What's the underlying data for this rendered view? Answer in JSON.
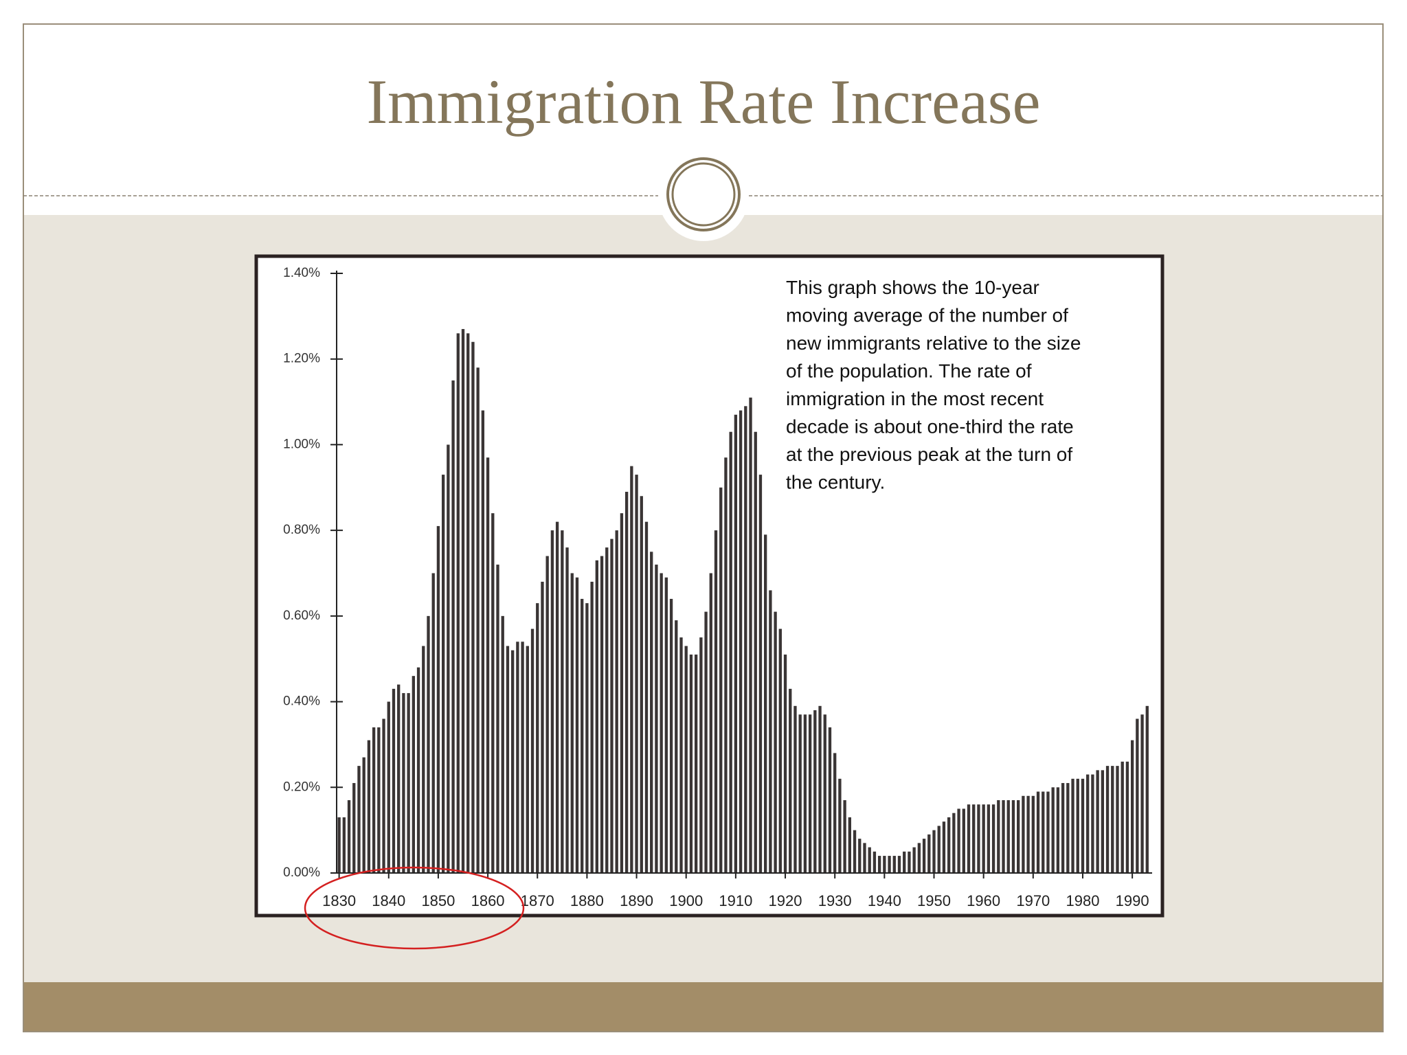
{
  "chart_data": {
    "type": "bar",
    "title": "Immigration Rate Increase",
    "annotation": [
      "This graph shows the 10-year",
      "moving average of the number of",
      "new immigrants relative to the size",
      "of the population. The rate of",
      "immigration in the most recent",
      "decade is about one-third the rate",
      "at the previous peak at the turn of",
      "the century."
    ],
    "x": [
      1830,
      1831,
      1832,
      1833,
      1834,
      1835,
      1836,
      1837,
      1838,
      1839,
      1840,
      1841,
      1842,
      1843,
      1844,
      1845,
      1846,
      1847,
      1848,
      1849,
      1850,
      1851,
      1852,
      1853,
      1854,
      1855,
      1856,
      1857,
      1858,
      1859,
      1860,
      1861,
      1862,
      1863,
      1864,
      1865,
      1866,
      1867,
      1868,
      1869,
      1870,
      1871,
      1872,
      1873,
      1874,
      1875,
      1876,
      1877,
      1878,
      1879,
      1880,
      1881,
      1882,
      1883,
      1884,
      1885,
      1886,
      1887,
      1888,
      1889,
      1890,
      1891,
      1892,
      1893,
      1894,
      1895,
      1896,
      1897,
      1898,
      1899,
      1900,
      1901,
      1902,
      1903,
      1904,
      1905,
      1906,
      1907,
      1908,
      1909,
      1910,
      1911,
      1912,
      1913,
      1914,
      1915,
      1916,
      1917,
      1918,
      1919,
      1920,
      1921,
      1922,
      1923,
      1924,
      1925,
      1926,
      1927,
      1928,
      1929,
      1930,
      1931,
      1932,
      1933,
      1934,
      1935,
      1936,
      1937,
      1938,
      1939,
      1940,
      1941,
      1942,
      1943,
      1944,
      1945,
      1946,
      1947,
      1948,
      1949,
      1950,
      1951,
      1952,
      1953,
      1954,
      1955,
      1956,
      1957,
      1958,
      1959,
      1960,
      1961,
      1962,
      1963,
      1964,
      1965,
      1966,
      1967,
      1968,
      1969,
      1970,
      1971,
      1972,
      1973,
      1974,
      1975,
      1976,
      1977,
      1978,
      1979,
      1980,
      1981,
      1982,
      1983,
      1984,
      1985,
      1986,
      1987,
      1988,
      1989,
      1990,
      1991,
      1992,
      1993
    ],
    "values": [
      0.13,
      0.13,
      0.17,
      0.21,
      0.25,
      0.27,
      0.31,
      0.34,
      0.34,
      0.36,
      0.4,
      0.43,
      0.44,
      0.42,
      0.42,
      0.46,
      0.48,
      0.53,
      0.6,
      0.7,
      0.81,
      0.93,
      1.0,
      1.15,
      1.26,
      1.27,
      1.26,
      1.24,
      1.18,
      1.08,
      0.97,
      0.84,
      0.72,
      0.6,
      0.53,
      0.52,
      0.54,
      0.54,
      0.53,
      0.57,
      0.63,
      0.68,
      0.74,
      0.8,
      0.82,
      0.8,
      0.76,
      0.7,
      0.69,
      0.64,
      0.63,
      0.68,
      0.73,
      0.74,
      0.76,
      0.78,
      0.8,
      0.84,
      0.89,
      0.95,
      0.93,
      0.88,
      0.82,
      0.75,
      0.72,
      0.7,
      0.69,
      0.64,
      0.59,
      0.55,
      0.53,
      0.51,
      0.51,
      0.55,
      0.61,
      0.7,
      0.8,
      0.9,
      0.97,
      1.03,
      1.07,
      1.08,
      1.09,
      1.11,
      1.03,
      0.93,
      0.79,
      0.66,
      0.61,
      0.57,
      0.51,
      0.43,
      0.39,
      0.37,
      0.37,
      0.37,
      0.38,
      0.39,
      0.37,
      0.34,
      0.28,
      0.22,
      0.17,
      0.13,
      0.1,
      0.08,
      0.07,
      0.06,
      0.05,
      0.04,
      0.04,
      0.04,
      0.04,
      0.04,
      0.05,
      0.05,
      0.06,
      0.07,
      0.08,
      0.09,
      0.1,
      0.11,
      0.12,
      0.13,
      0.14,
      0.15,
      0.15,
      0.16,
      0.16,
      0.16,
      0.16,
      0.16,
      0.16,
      0.17,
      0.17,
      0.17,
      0.17,
      0.17,
      0.18,
      0.18,
      0.18,
      0.19,
      0.19,
      0.19,
      0.2,
      0.2,
      0.21,
      0.21,
      0.22,
      0.22,
      0.22,
      0.23,
      0.23,
      0.24,
      0.24,
      0.25,
      0.25,
      0.25,
      0.26,
      0.26,
      0.31,
      0.36,
      0.37,
      0.39
    ],
    "color": "#3a3535",
    "xlim": [
      1829.5,
      1994
    ],
    "xticks": [
      1830,
      1840,
      1850,
      1860,
      1870,
      1880,
      1890,
      1900,
      1910,
      1920,
      1930,
      1940,
      1950,
      1960,
      1970,
      1980,
      1990
    ],
    "ylim": [
      0,
      1.4
    ],
    "yticks": [
      {
        "value": 0,
        "label": "0.00%"
      },
      {
        "value": 0.2,
        "label": "0.20%"
      },
      {
        "value": 0.4,
        "label": "0.40%"
      },
      {
        "value": 0.6,
        "label": "0.60%"
      },
      {
        "value": 0.8,
        "label": "0.80%"
      },
      {
        "value": 1.0,
        "label": "1.00%"
      },
      {
        "value": 1.2,
        "label": "1.20%"
      },
      {
        "value": 1.4,
        "label": "1.40%"
      }
    ]
  }
}
